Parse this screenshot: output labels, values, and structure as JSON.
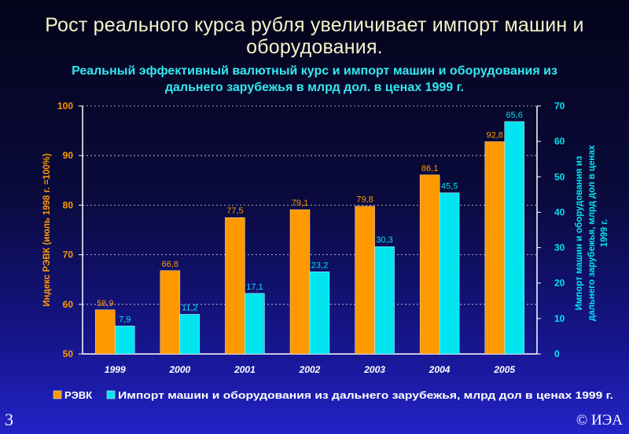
{
  "slide": {
    "title_line1": "Рост реального курса рубля увеличивает импорт машин и",
    "title_line2": "оборудования.",
    "subtitle_line1": "Реальный эффективный валютный курс и импорт машин и оборудования из",
    "subtitle_line2": "дальнего зарубежья в млрд дол. в ценах 1999 г.",
    "page_number": "3",
    "copyright": "© ИЭА"
  },
  "colors": {
    "ravk": "#ff9900",
    "import": "#00e5f0",
    "left_axis_text": "#ff9900",
    "right_axis_text": "#00e5f0",
    "axis_line": "#ffffff",
    "grid": "#ffffff"
  },
  "chart_data": {
    "type": "bar",
    "categories": [
      "1999",
      "2000",
      "2001",
      "2002",
      "2003",
      "2004",
      "2005"
    ],
    "series": [
      {
        "name": "РЭВК",
        "axis": "left",
        "values": [
          58.9,
          66.8,
          77.5,
          79.1,
          79.8,
          86.1,
          92.8
        ],
        "labels": [
          "58,9",
          "66,8",
          "77,5",
          "79,1",
          "79,8",
          "86,1",
          "92,8"
        ]
      },
      {
        "name": "Импорт машин и оборудования из дальнего зарубежья, млрд дол в ценах 1999 г.",
        "axis": "right",
        "values": [
          7.9,
          11.2,
          17.1,
          23.2,
          30.3,
          45.5,
          65.6
        ],
        "labels": [
          "7,9",
          "11,2",
          "17,1",
          "23,2",
          "30,3",
          "45,5",
          "65,6"
        ]
      }
    ],
    "ylabel": "Индекс РЭВК (июль 1998 г. =100%)",
    "y2label_line1": "Импорт машин и оборудования из",
    "y2label_line2": "дальнего зарубежья, млрд дол в ценах",
    "y2label_line3": "1999 г.",
    "ylim": [
      50,
      100
    ],
    "yticks": [
      50,
      60,
      70,
      80,
      90,
      100
    ],
    "y2lim": [
      0,
      70
    ],
    "y2ticks": [
      0,
      10,
      20,
      30,
      40,
      50,
      60,
      70
    ],
    "grid": "dashed horizontal at left-axis ticks",
    "legend_position": "bottom"
  }
}
